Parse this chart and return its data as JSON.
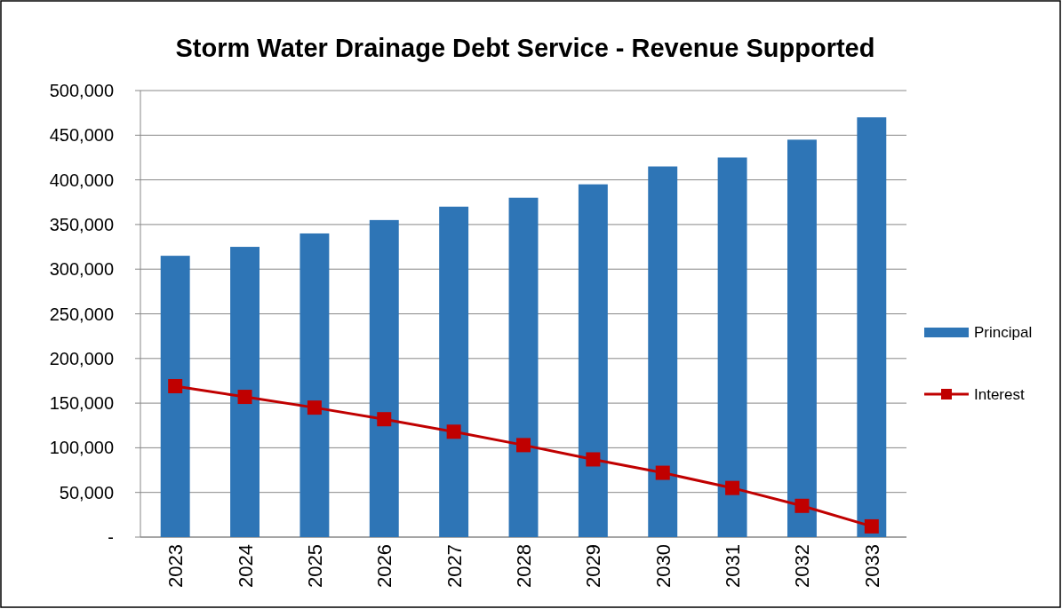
{
  "chart_data": {
    "type": "bar",
    "title": "Storm Water Drainage Debt Service - Revenue Supported",
    "categories": [
      "2023",
      "2024",
      "2025",
      "2026",
      "2027",
      "2028",
      "2029",
      "2030",
      "2031",
      "2032",
      "2033"
    ],
    "series": [
      {
        "name": "Principal",
        "color": "#2e75b6",
        "values": [
          315000,
          325000,
          340000,
          355000,
          370000,
          380000,
          395000,
          415000,
          425000,
          445000,
          470000
        ]
      },
      {
        "name": "Interest",
        "type": "line",
        "color": "#c00000",
        "marker": "square",
        "values": [
          169000,
          157000,
          145000,
          132000,
          118000,
          103000,
          87000,
          72000,
          55000,
          35000,
          12000
        ]
      }
    ],
    "ylim": [
      0,
      500000
    ],
    "yticks": [
      {
        "value": 0,
        "label": "-"
      },
      {
        "value": 50000,
        "label": "50,000"
      },
      {
        "value": 100000,
        "label": "100,000"
      },
      {
        "value": 150000,
        "label": "150,000"
      },
      {
        "value": 200000,
        "label": "200,000"
      },
      {
        "value": 250000,
        "label": "250,000"
      },
      {
        "value": 300000,
        "label": "300,000"
      },
      {
        "value": 350000,
        "label": "350,000"
      },
      {
        "value": 400000,
        "label": "400,000"
      },
      {
        "value": 450000,
        "label": "450,000"
      },
      {
        "value": 500000,
        "label": "500,000"
      }
    ],
    "grid": "y",
    "legend": "right"
  }
}
